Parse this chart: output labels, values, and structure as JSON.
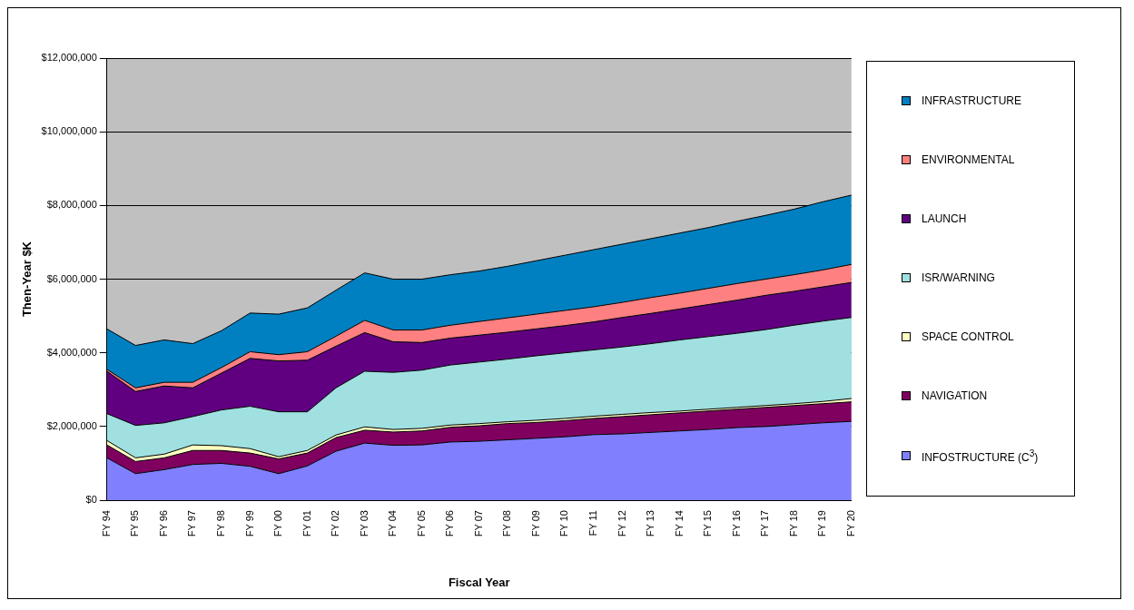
{
  "chart_data": {
    "type": "area",
    "stacked": true,
    "xlabel": "Fiscal Year",
    "ylabel": "Then-Year $K",
    "categories": [
      "FY 94",
      "FY 95",
      "FY 96",
      "FY 97",
      "FY 98",
      "FY 99",
      "FY 00",
      "FY 01",
      "FY 02",
      "FY 03",
      "FY 04",
      "FY 05",
      "FY 06",
      "FY 07",
      "FY 08",
      "FY 09",
      "FY 10",
      "FY 11",
      "FY 12",
      "FY 13",
      "FY 14",
      "FY 15",
      "FY 16",
      "FY 17",
      "FY 18",
      "FY 19",
      "FY 20"
    ],
    "ylim": [
      0,
      12000000
    ],
    "yticks": [
      {
        "value": 0,
        "label": "$0"
      },
      {
        "value": 2000000,
        "label": "$2,000,000"
      },
      {
        "value": 4000000,
        "label": "$4,000,000"
      },
      {
        "value": 6000000,
        "label": "$6,000,000"
      },
      {
        "value": 8000000,
        "label": "$8,000,000"
      },
      {
        "value": 10000000,
        "label": "$10,000,000"
      },
      {
        "value": 12000000,
        "label": "$12,000,000"
      }
    ],
    "grid": "y",
    "legend": "right",
    "series": [
      {
        "name": "INFOSTRUCTURE (C$^{3}$)",
        "color": "#8080ff",
        "values": [
          1150000,
          720000,
          830000,
          970000,
          1000000,
          920000,
          720000,
          930000,
          1330000,
          1550000,
          1490000,
          1500000,
          1580000,
          1600000,
          1640000,
          1680000,
          1720000,
          1780000,
          1800000,
          1840000,
          1880000,
          1920000,
          1970000,
          2000000,
          2050000,
          2100000,
          2140000
        ]
      },
      {
        "name": "NAVIGATION",
        "color": "#800060",
        "values": [
          350000,
          330000,
          320000,
          380000,
          350000,
          360000,
          400000,
          350000,
          370000,
          350000,
          360000,
          380000,
          400000,
          420000,
          440000,
          430000,
          440000,
          440000,
          470000,
          480000,
          490000,
          500000,
          500000,
          520000,
          520000,
          520000,
          530000
        ]
      },
      {
        "name": "SPACE CONTROL",
        "color": "#ffffc0",
        "values": [
          120000,
          100000,
          100000,
          150000,
          130000,
          120000,
          60000,
          70000,
          70000,
          90000,
          70000,
          70000,
          60000,
          60000,
          50000,
          60000,
          60000,
          60000,
          60000,
          60000,
          50000,
          50000,
          50000,
          50000,
          50000,
          60000,
          90000
        ]
      },
      {
        "name": "ISR/WARNING",
        "color": "#a0e0e0",
        "values": [
          730000,
          880000,
          850000,
          770000,
          970000,
          1150000,
          1220000,
          1050000,
          1280000,
          1510000,
          1550000,
          1580000,
          1630000,
          1670000,
          1700000,
          1750000,
          1780000,
          1800000,
          1830000,
          1870000,
          1930000,
          1970000,
          2010000,
          2060000,
          2130000,
          2180000,
          2200000
        ]
      },
      {
        "name": "LAUNCH",
        "color": "#600080",
        "values": [
          1150000,
          920000,
          1000000,
          780000,
          1000000,
          1300000,
          1380000,
          1400000,
          1130000,
          1050000,
          830000,
          750000,
          730000,
          730000,
          730000,
          730000,
          740000,
          760000,
          800000,
          820000,
          840000,
          870000,
          900000,
          930000,
          920000,
          930000,
          950000
        ]
      },
      {
        "name": "ENVIRONMENTAL",
        "color": "#ff8080",
        "values": [
          50000,
          100000,
          100000,
          150000,
          150000,
          180000,
          170000,
          230000,
          270000,
          330000,
          320000,
          340000,
          350000,
          370000,
          390000,
          400000,
          410000,
          410000,
          410000,
          430000,
          430000,
          440000,
          450000,
          440000,
          450000,
          460000,
          490000
        ]
      },
      {
        "name": "INFRASTRUCTURE",
        "color": "#0080c0",
        "values": [
          1100000,
          1150000,
          1150000,
          1050000,
          1000000,
          1050000,
          1100000,
          1190000,
          1250000,
          1290000,
          1380000,
          1380000,
          1370000,
          1370000,
          1400000,
          1450000,
          1500000,
          1550000,
          1580000,
          1600000,
          1630000,
          1650000,
          1690000,
          1730000,
          1780000,
          1850000,
          1880000
        ]
      }
    ]
  }
}
